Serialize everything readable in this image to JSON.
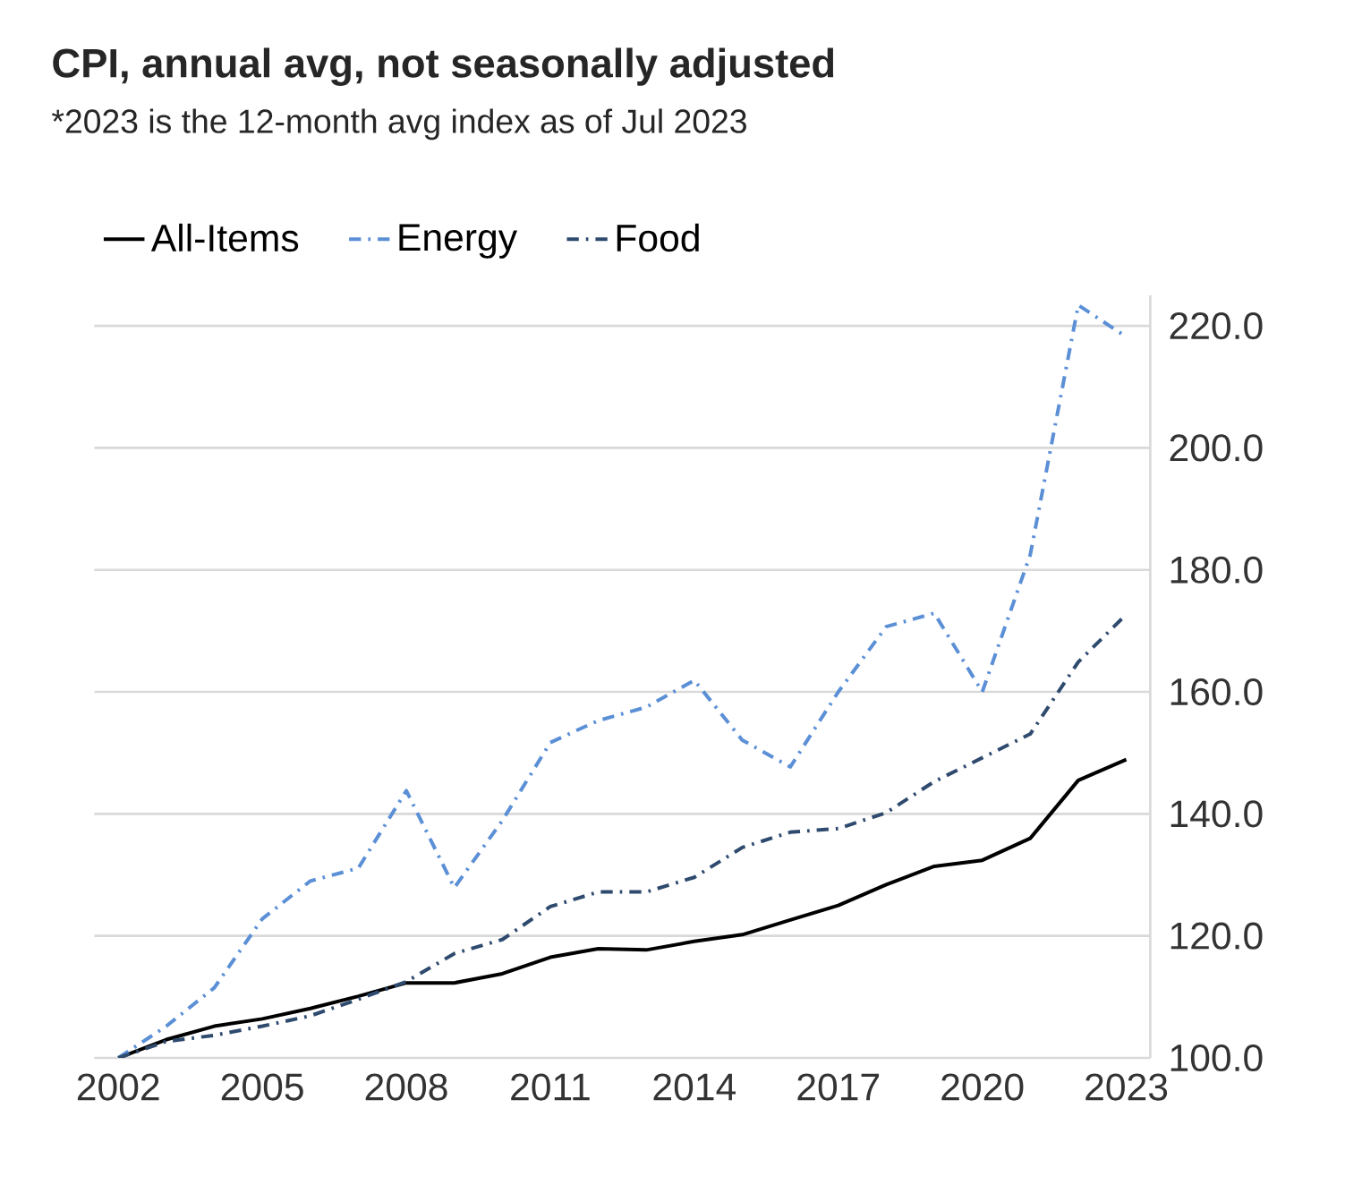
{
  "chart_data": {
    "type": "line",
    "title": "CPI, annual avg, not seasonally adjusted",
    "subtitle": "*2023 is the 12-month avg index as of Jul 2023",
    "x": [
      2002,
      2003,
      2004,
      2005,
      2006,
      2007,
      2008,
      2009,
      2010,
      2011,
      2012,
      2013,
      2014,
      2015,
      2016,
      2017,
      2018,
      2019,
      2020,
      2021,
      2022,
      2023
    ],
    "series": [
      {
        "name": "All-Items",
        "color": "#000000",
        "line_style": "solid",
        "values": [
          100.0,
          103.0,
          105.2,
          106.4,
          108.1,
          110.1,
          112.3,
          112.3,
          113.8,
          116.5,
          117.9,
          117.7,
          119.1,
          120.2,
          122.6,
          125.0,
          128.4,
          131.4,
          132.4,
          136.0,
          145.5,
          148.9
        ]
      },
      {
        "name": "Energy",
        "color": "#5b8fd6",
        "line_style": "dashdot",
        "values": [
          100.0,
          105.2,
          111.5,
          122.8,
          129.0,
          131.1,
          143.8,
          127.9,
          138.9,
          151.7,
          155.3,
          157.5,
          161.9,
          152.1,
          147.7,
          160.0,
          170.7,
          172.9,
          160.0,
          182.5,
          223.4,
          218.2
        ]
      },
      {
        "name": "Food",
        "color": "#2e4a6e",
        "line_style": "dashdot",
        "values": [
          100.0,
          102.7,
          103.7,
          105.2,
          106.9,
          109.6,
          112.5,
          117.1,
          119.4,
          124.8,
          127.2,
          127.2,
          129.6,
          134.5,
          137.0,
          137.6,
          140.2,
          145.3,
          149.2,
          153.1,
          164.9,
          172.7
        ]
      }
    ],
    "xlim": [
      2001.5,
      2023.5
    ],
    "xticks": [
      2002,
      2005,
      2008,
      2011,
      2014,
      2017,
      2020,
      2023
    ],
    "ylim": [
      100,
      225
    ],
    "yticks": [
      {
        "value": 100,
        "label": "100.0"
      },
      {
        "value": 120,
        "label": "120.0"
      },
      {
        "value": 140,
        "label": "140.0"
      },
      {
        "value": 160,
        "label": "160.0"
      },
      {
        "value": 180,
        "label": "180.0"
      },
      {
        "value": 200,
        "label": "200.0"
      },
      {
        "value": 220,
        "label": "220.0"
      }
    ],
    "grid": "y",
    "legend": "top left"
  }
}
